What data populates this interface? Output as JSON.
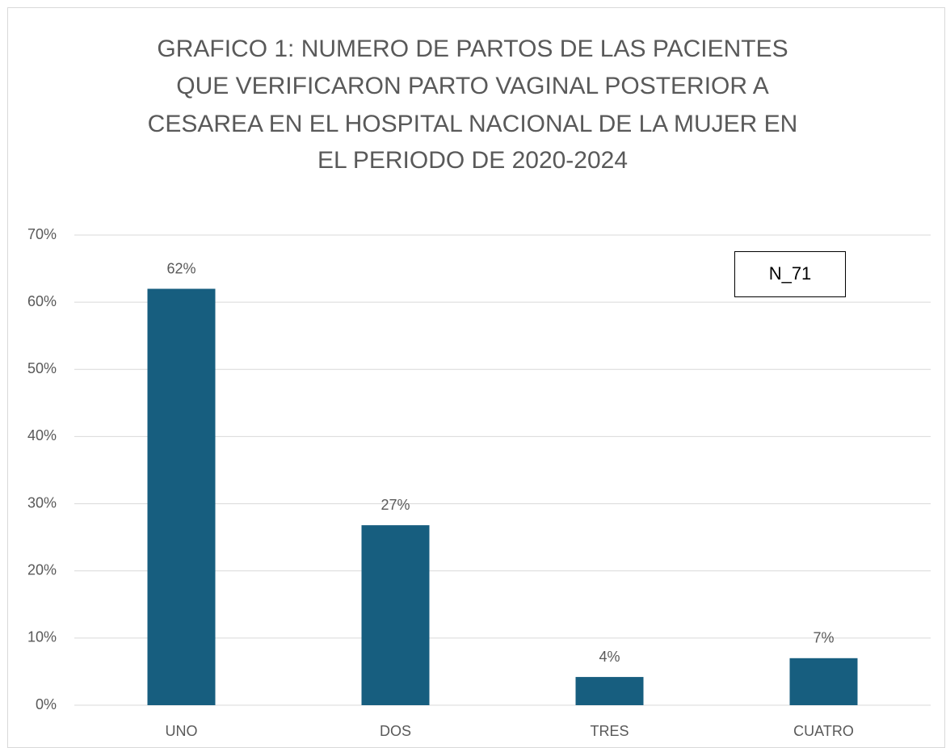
{
  "chart_data": {
    "type": "bar",
    "title": [
      "GRAFICO 1: NUMERO DE PARTOS DE LAS PACIENTES",
      "QUE VERIFICARON PARTO VAGINAL POSTERIOR A",
      "CESAREA EN EL HOSPITAL NACIONAL DE LA MUJER  EN",
      "EL PERIODO DE 2020-2024"
    ],
    "annotation": "N_71",
    "categories": [
      "UNO",
      "DOS",
      "TRES",
      "CUATRO"
    ],
    "values": [
      62,
      26.8,
      4.2,
      7
    ],
    "value_labels": [
      "62%",
      "27%",
      "4%",
      "7%"
    ],
    "color": "#175e7f",
    "ylim": [
      0,
      70
    ],
    "yticks": [
      {
        "value": 0,
        "label": "0%"
      },
      {
        "value": 10,
        "label": "10%"
      },
      {
        "value": 20,
        "label": "20%"
      },
      {
        "value": 30,
        "label": "30%"
      },
      {
        "value": 40,
        "label": "40%"
      },
      {
        "value": 50,
        "label": "50%"
      },
      {
        "value": 60,
        "label": "60%"
      },
      {
        "value": 70,
        "label": "70%"
      }
    ],
    "grid": true
  }
}
